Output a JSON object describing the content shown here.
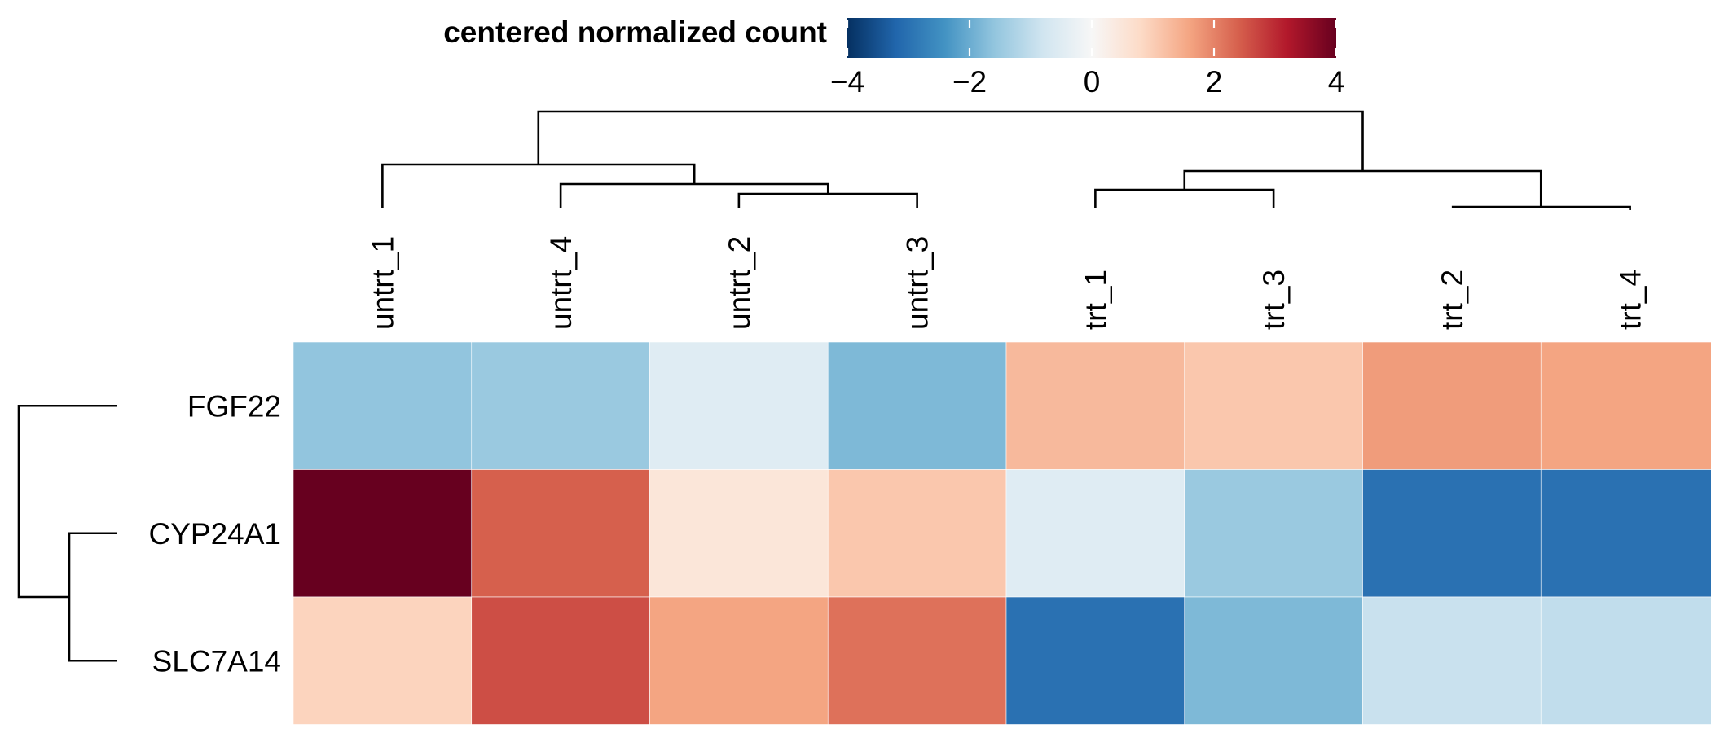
{
  "chart_data": {
    "type": "heatmap",
    "legend": {
      "title": "centered normalized count",
      "range": [
        -4,
        4
      ],
      "ticks": [
        -4,
        -2,
        0,
        2,
        4
      ],
      "tick_labels": [
        "−4",
        "−2",
        "0",
        "2",
        "4"
      ],
      "palette": [
        "#053061",
        "#2166AC",
        "#4393C3",
        "#92C5DE",
        "#D1E5F0",
        "#F7F7F7",
        "#FDDBC7",
        "#F4A582",
        "#D6604D",
        "#B2182B",
        "#67001F"
      ],
      "placement": "top"
    },
    "columns": [
      "untrt_1",
      "untrt_4",
      "untrt_2",
      "untrt_3",
      "trt_1",
      "trt_3",
      "trt_2",
      "trt_4"
    ],
    "rows": [
      "FGF22",
      "CYP24A1",
      "SLC7A14"
    ],
    "values": [
      [
        -1.6,
        -1.5,
        -0.5,
        -1.8,
        1.3,
        1.1,
        1.7,
        1.6
      ],
      [
        4.0,
        2.4,
        0.5,
        1.1,
        -0.5,
        -1.5,
        -3.0,
        -3.0
      ],
      [
        0.9,
        2.6,
        1.6,
        2.2,
        -3.0,
        -1.8,
        -0.9,
        -1.0
      ]
    ],
    "column_dendrogram": true,
    "row_dendrogram": true
  }
}
